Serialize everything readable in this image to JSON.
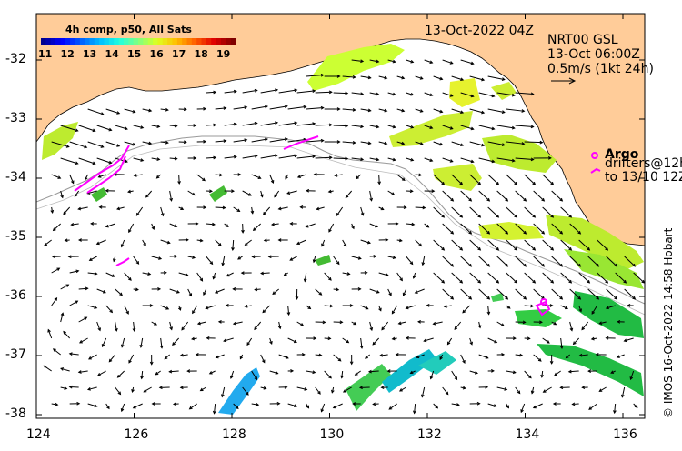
{
  "map": {
    "title_date": "13-Oct-2022 04Z",
    "product": {
      "name": "NRT00 GSL",
      "time": "13-Oct 06:00Z",
      "scale": "0.5m/s (1kt 24h)"
    },
    "sst_legend": {
      "title": "4h comp, p50, All Sats",
      "ticks": [
        "11",
        "12",
        "13",
        "14",
        "15",
        "16",
        "17",
        "18",
        "19"
      ]
    },
    "argo_legend": {
      "title": "Argo",
      "drifters_line1": "drifters@12h",
      "drifters_line2": "to 13/10 12Z"
    },
    "credit": "© IMOS 16-Oct-2022 14:58 Hobart",
    "x_ticks": [
      "124",
      "126",
      "128",
      "130",
      "132",
      "134",
      "136"
    ],
    "y_ticks": [
      "-32",
      "-33",
      "-34",
      "-35",
      "-36",
      "-37",
      "-38"
    ],
    "colors": {
      "land": "#FFCC99",
      "ocean": "#ffffff",
      "arrows": "#000000",
      "argo": "#FF00FF"
    },
    "icons": [
      "argo-float-icon",
      "drifter-track-icon",
      "current-arrow-icon"
    ]
  }
}
